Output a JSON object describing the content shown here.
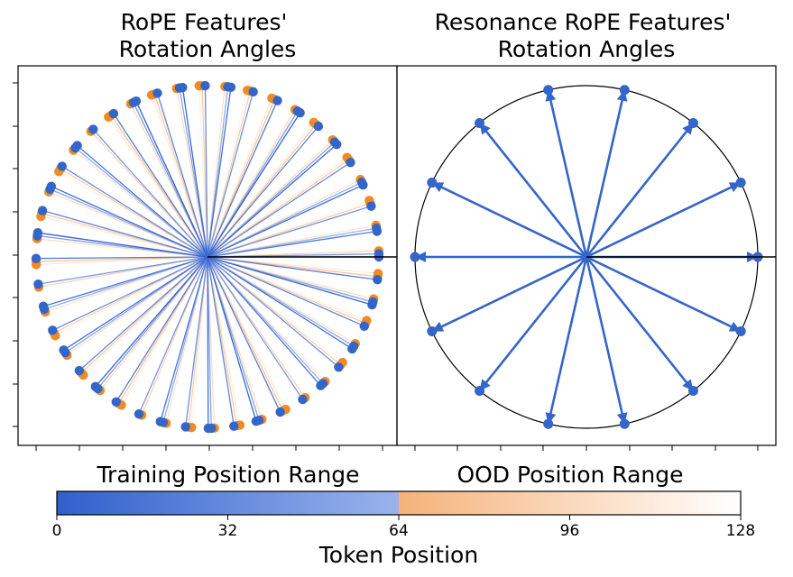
{
  "chart_data": [
    {
      "type": "scatter",
      "title": "RoPE Features'\nRotation Angles",
      "title_lines": [
        "RoPE Features'",
        "Rotation Angles"
      ],
      "description": "rotation angle of each token position 0-127 on the unit circle; integer angles, arrows from origin",
      "positions": [
        0,
        127
      ],
      "angle_rule": "angle(p) = p radians",
      "marker": "circle + arrow",
      "reference_line": "angle 0",
      "grid": false
    },
    {
      "type": "scatter",
      "title": "Resonance RoPE Features'\nRotation Angles",
      "title_lines": [
        "Resonance RoPE Features'",
        "Rotation Angles"
      ],
      "description": "rotation angles repeat every 14 positions; all positions fall on 14 distinct angles",
      "angle_rule": "angle(p) = 2*pi*(p mod 14)/14",
      "period": 14,
      "distinct_angles": 14,
      "marker": "circle + arrow",
      "reference_line": "angle 0",
      "grid": false
    }
  ],
  "colorbar": {
    "label": "Token Position",
    "min": 0,
    "max": 128,
    "ticks": [
      "0",
      "32",
      "64",
      "96",
      "128"
    ],
    "tick_values": [
      0,
      32,
      64,
      96,
      128
    ],
    "segments": [
      {
        "name": "Training Position Range",
        "from": 0,
        "to": 64,
        "color_start": "#3060cc",
        "color_end": "#9ab3ec"
      },
      {
        "name": "OOD Position Range",
        "from": 64,
        "to": 128,
        "color_start": "#f5b27a",
        "color_end": "#ffffff"
      }
    ]
  },
  "range_labels": {
    "training": "Training Position Range",
    "ood": "OOD Position Range"
  }
}
